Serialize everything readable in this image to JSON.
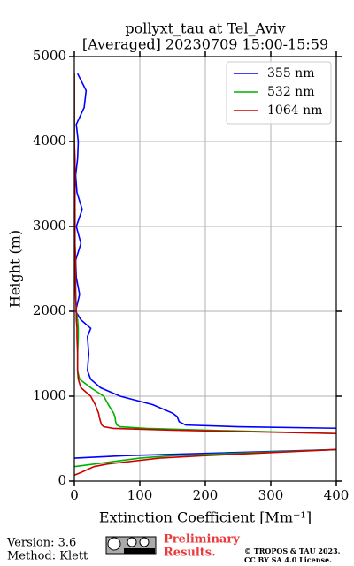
{
  "chart_data": {
    "type": "line",
    "title": "pollyxt_tau at Tel_Aviv",
    "subtitle": "[Averaged] 20230709 15:00-15:59",
    "xlabel": "Extinction Coefficient [Mm⁻¹]",
    "ylabel": "Height (m)",
    "xlim": [
      0,
      400
    ],
    "xticks": [
      0,
      100,
      200,
      300,
      400
    ],
    "ylim": [
      0,
      5000
    ],
    "yticks": [
      0,
      1000,
      2000,
      3000,
      4000,
      5000
    ],
    "grid": true,
    "legend": "upper right",
    "y": [
      70,
      100,
      170,
      200,
      270,
      300,
      370,
      420,
      560,
      600,
      620,
      640,
      660,
      700,
      760,
      800,
      900,
      1000,
      1100,
      1200,
      1300,
      1500,
      1700,
      1800,
      1900,
      2000,
      2200,
      2400,
      2600,
      2800,
      3000,
      3200,
      3400,
      3600,
      3800,
      4000,
      4200,
      4400,
      4600,
      4800
    ],
    "series": [
      {
        "name": "355 nm",
        "color": "#0000ff",
        "values": [
          null,
          null,
          null,
          null,
          0,
          80,
          400,
          null,
          null,
          null,
          420,
          250,
          170,
          160,
          157,
          150,
          120,
          70,
          40,
          25,
          20,
          22,
          20,
          25,
          10,
          2,
          8,
          3,
          2,
          10,
          3,
          12,
          4,
          2,
          5,
          6,
          3,
          15,
          18,
          5
        ]
      },
      {
        "name": "532 nm",
        "color": "#00b000",
        "values": [
          null,
          null,
          0,
          30,
          100,
          150,
          400,
          null,
          400,
          200,
          110,
          70,
          65,
          63,
          62,
          60,
          52,
          45,
          25,
          8,
          5,
          5,
          6,
          6,
          5,
          3,
          2,
          1,
          1,
          1,
          1,
          1,
          0,
          0,
          0,
          0,
          0,
          0,
          0,
          0
        ]
      },
      {
        "name": "1064 nm",
        "color": "#cc0000",
        "values": [
          0,
          10,
          30,
          50,
          130,
          200,
          400,
          null,
          400,
          150,
          60,
          45,
          42,
          40,
          38,
          37,
          32,
          25,
          10,
          6,
          5,
          5,
          4,
          4,
          3,
          3,
          2,
          2,
          2,
          1,
          1,
          1,
          1,
          1,
          1,
          0,
          0,
          0,
          0,
          0
        ]
      }
    ]
  },
  "footer": {
    "version": "Version: 3.6",
    "method": "Method: Klett",
    "notice": [
      "Preliminary",
      "Results."
    ],
    "copyright": [
      "© TROPOS & TAU 2023.",
      "CC BY SA 4.0 License."
    ]
  }
}
